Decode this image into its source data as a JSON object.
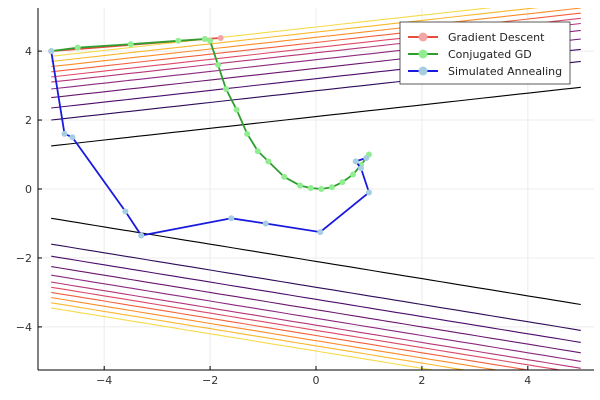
{
  "chart_data": {
    "type": "line",
    "title": "",
    "xlabel": "",
    "ylabel": "",
    "xlim": [
      -5.25,
      5.25
    ],
    "ylim": [
      -5.25,
      5.25
    ],
    "xticks": [
      -4,
      -2,
      0,
      2,
      4
    ],
    "yticks": [
      -4,
      -2,
      0,
      2,
      4
    ],
    "xtick_labels": [
      "−4",
      "−2",
      "0",
      "2",
      "4"
    ],
    "ytick_labels": [
      "−4",
      "−2",
      "0",
      "2",
      "4"
    ],
    "grid": true,
    "legend_position": "top-right",
    "contours": {
      "description_colors_inner_to_outer": [
        "#000000",
        "#3b0f70",
        "#8c2981",
        "#de4968",
        "#fe9f6d",
        "#fcfdbf"
      ],
      "count_per_side": 11
    },
    "series": [
      {
        "name": "Gradient Descent",
        "color": "#e74c3c",
        "marker_color": "#f4a6a6",
        "points": [
          [
            -5.0,
            4.0
          ],
          [
            -2.1,
            4.35
          ],
          [
            -1.8,
            4.38
          ]
        ]
      },
      {
        "name": "Conjugated GD",
        "color": "#2e9e2e",
        "marker_color": "#90ee90",
        "points": [
          [
            -5.0,
            4.0
          ],
          [
            -4.5,
            4.1
          ],
          [
            -3.5,
            4.2
          ],
          [
            -2.6,
            4.3
          ],
          [
            -2.1,
            4.35
          ],
          [
            -2.0,
            4.3
          ],
          [
            -1.85,
            3.6
          ],
          [
            -1.7,
            2.9
          ],
          [
            -1.5,
            2.3
          ],
          [
            -1.3,
            1.6
          ],
          [
            -1.1,
            1.1
          ],
          [
            -0.9,
            0.8
          ],
          [
            -0.6,
            0.35
          ],
          [
            -0.3,
            0.1
          ],
          [
            -0.1,
            0.03
          ],
          [
            0.1,
            0.0
          ],
          [
            0.3,
            0.05
          ],
          [
            0.5,
            0.2
          ],
          [
            0.7,
            0.42
          ],
          [
            0.85,
            0.7
          ],
          [
            1.0,
            1.0
          ]
        ]
      },
      {
        "name": "Simulated Annealing",
        "color": "#1a1adf",
        "marker_color": "#a6cee3",
        "points": [
          [
            -5.0,
            4.0
          ],
          [
            -4.75,
            1.6
          ],
          [
            -4.6,
            1.5
          ],
          [
            -3.6,
            -0.65
          ],
          [
            -3.3,
            -1.35
          ],
          [
            -1.6,
            -0.85
          ],
          [
            -0.95,
            -1.0
          ],
          [
            0.08,
            -1.25
          ],
          [
            1.0,
            -0.1
          ],
          [
            0.85,
            0.6
          ],
          [
            0.75,
            0.8
          ],
          [
            0.95,
            0.9
          ]
        ]
      }
    ]
  }
}
